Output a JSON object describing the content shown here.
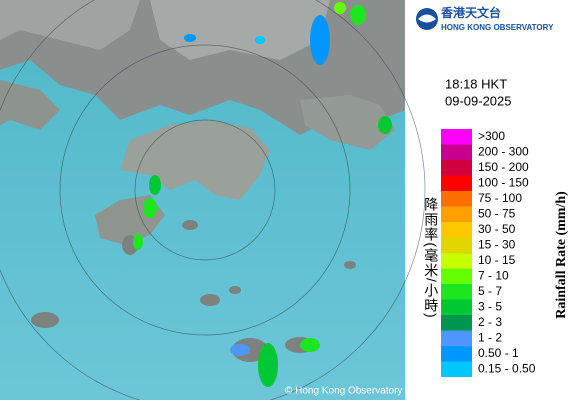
{
  "logo": {
    "chinese": "香港天文台",
    "english": "HONG KONG OBSERVATORY"
  },
  "time": "18:18 HKT",
  "date": "09-09-2025",
  "legend": {
    "title_chinese": "降雨率(毫米/小時)",
    "title_english": "Rainfall Rate (mm/h)",
    "items": [
      {
        "label": ">300",
        "color": "#ff00ff"
      },
      {
        "label": "200 - 300",
        "color": "#c8008c"
      },
      {
        "label": "150 - 200",
        "color": "#d2003c"
      },
      {
        "label": "100 - 150",
        "color": "#ff0000"
      },
      {
        "label": "75 - 100",
        "color": "#ff6e00"
      },
      {
        "label": "50 - 75",
        "color": "#ffa000"
      },
      {
        "label": "30 - 50",
        "color": "#ffc800"
      },
      {
        "label": "15 - 30",
        "color": "#e1d700"
      },
      {
        "label": "10 - 15",
        "color": "#c8ff00"
      },
      {
        "label": "7 - 10",
        "color": "#64ff00"
      },
      {
        "label": "5 - 7",
        "color": "#1ee61e"
      },
      {
        "label": "3 - 5",
        "color": "#00c832"
      },
      {
        "label": "2 - 3",
        "color": "#009650"
      },
      {
        "label": "1 - 2",
        "color": "#5096ff"
      },
      {
        "label": "0.50 - 1",
        "color": "#0096ff"
      },
      {
        "label": "0.15 - 0.50",
        "color": "#00c8ff"
      }
    ]
  },
  "copyright": "© Hong Kong Observatory"
}
